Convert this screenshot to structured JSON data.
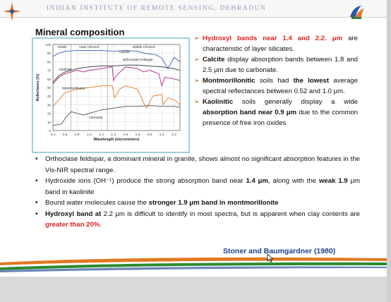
{
  "header": {
    "institute": "INDIAN INSTITUTE OF REMOTE SENSING, DEHRADUN",
    "logo_left": "iirs-logo",
    "logo_right": "isro-logo"
  },
  "slide": {
    "title": "Mineral composition",
    "right_bullets": [
      {
        "pre": "",
        "hl": "Hydroxyl bands near 1.4 and 2.2. μm",
        "post": " are characteristic of layer silicates."
      },
      {
        "pre": "",
        "hl": "Calcite",
        "post": " display absorption bands between 1.8 and 2.5 μm due to carbonate."
      },
      {
        "pre": "",
        "hl": "Montmorillonitic",
        "post": " soils had ",
        "hl2": "the lowest",
        "post2": " average spectral reflectances between 0.52 and 1.0 μm."
      },
      {
        "pre": "",
        "hl": "Kaolinitic",
        "post": " soils generally display a wide ",
        "hl2": "absorption band near 0.9 μm",
        "post2": " due to the common presence of free iron oxides"
      }
    ],
    "bottom_bullets": [
      {
        "text": "Orthoclase feldspar, a dominant mineral in granite, shows almost no significant absorption features in the Vis-NIR spectral range."
      },
      {
        "a": "Hydroxide ions (OH⁻¹) produce the strong absorption band near ",
        "b1": "1.4 μm",
        "c": ", along with the ",
        "b2": "weak 1.9",
        "d": " μm band in kaolinite"
      },
      {
        "a": "Bound water molecules cause the ",
        "b1": "stronger 1.9 μm band in montmorillonite"
      },
      {
        "b0": "Hydroxyl band at",
        "a": " 2.2 μm is difficult to identify in most spectra, but is apparent when clay contents are ",
        "r": "greater than 20%",
        "e": "."
      }
    ],
    "citation": "Stoner and Baumgardner (1980)"
  },
  "chart_data": {
    "type": "line",
    "xlabel": "Wavelength (micrometers)",
    "ylabel": "Reflectance (%)",
    "xlim": [
      0.4,
      2.5
    ],
    "ylim": [
      0,
      100
    ],
    "x_ticks": [
      "0.4",
      "0.6",
      "0.8",
      "1.0",
      "1.2",
      "1.4",
      "1.6",
      "1.8",
      "2.0",
      "2.2",
      "2.4"
    ],
    "y_ticks": [
      "0",
      "10",
      "20",
      "30",
      "40",
      "50",
      "60",
      "70",
      "80",
      "90",
      "100"
    ],
    "regions": [
      "Visible",
      "Near Infrared",
      "Middle Infrared"
    ],
    "series": [
      {
        "name": "Calcite",
        "color": "#4a6fb5",
        "x": [
          0.4,
          0.5,
          0.6,
          0.8,
          1.0,
          1.2,
          1.4,
          1.6,
          1.8,
          1.9,
          2.0,
          2.1,
          2.2,
          2.3,
          2.35,
          2.4,
          2.5
        ],
        "y": [
          86,
          90,
          92,
          93,
          93,
          93,
          92,
          93,
          92,
          90,
          89,
          88,
          84,
          72,
          78,
          85,
          80
        ]
      },
      {
        "name": "Orthoclase Feldspar",
        "color": "#444444",
        "x": [
          0.4,
          0.5,
          0.6,
          0.8,
          1.0,
          1.2,
          1.4,
          1.6,
          1.8,
          2.0,
          2.2,
          2.4,
          2.5
        ],
        "y": [
          56,
          64,
          68,
          72,
          74,
          75,
          75,
          76,
          76,
          75,
          74,
          72,
          70
        ]
      },
      {
        "name": "Kaolinite",
        "color": "#b03a90",
        "x": [
          0.4,
          0.5,
          0.6,
          0.8,
          0.9,
          1.0,
          1.2,
          1.38,
          1.4,
          1.45,
          1.6,
          1.8,
          1.9,
          2.0,
          2.15,
          2.2,
          2.25,
          2.4,
          2.5
        ],
        "y": [
          54,
          62,
          66,
          70,
          68,
          70,
          72,
          74,
          58,
          64,
          74,
          72,
          68,
          70,
          66,
          52,
          62,
          60,
          58
        ]
      },
      {
        "name": "Montmorillonite",
        "color": "#e08a3a",
        "x": [
          0.4,
          0.5,
          0.6,
          0.8,
          1.0,
          1.2,
          1.38,
          1.42,
          1.5,
          1.6,
          1.8,
          1.9,
          1.95,
          2.05,
          2.2,
          2.22,
          2.3,
          2.4,
          2.5
        ],
        "y": [
          28,
          36,
          44,
          48,
          50,
          52,
          52,
          38,
          48,
          52,
          48,
          32,
          26,
          40,
          42,
          30,
          38,
          36,
          30
        ]
      },
      {
        "name": "Hematite",
        "color": "#666666",
        "x": [
          0.4,
          0.5,
          0.55,
          0.6,
          0.7,
          0.8,
          0.9,
          1.0,
          1.2,
          1.4,
          1.6,
          1.8,
          2.0,
          2.2,
          2.4,
          2.5
        ],
        "y": [
          6,
          7,
          8,
          14,
          22,
          20,
          18,
          20,
          24,
          26,
          28,
          28,
          29,
          28,
          28,
          27
        ]
      }
    ]
  }
}
